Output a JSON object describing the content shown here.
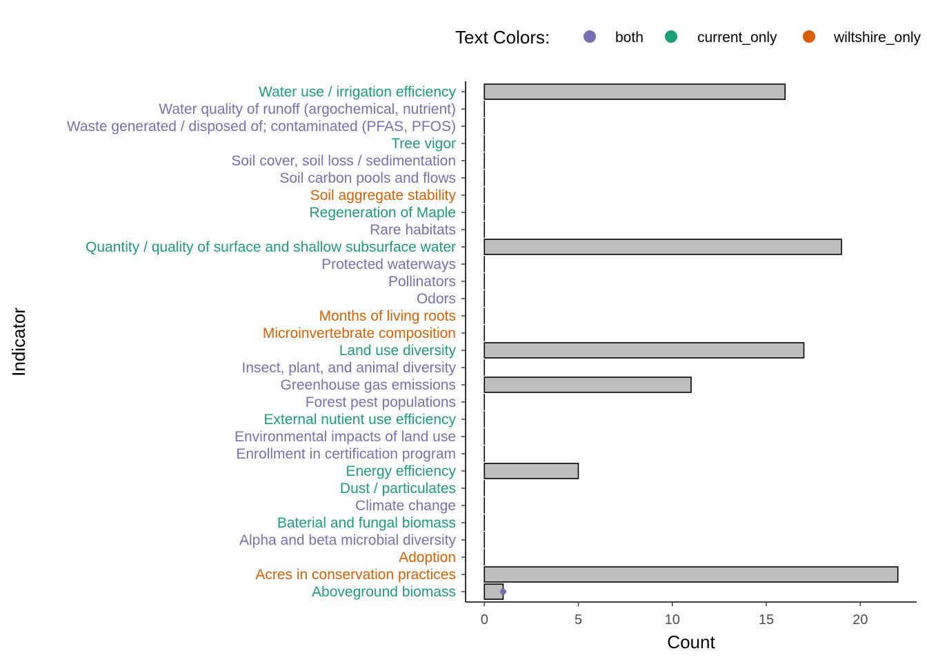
{
  "chart_data": {
    "type": "bar",
    "orientation": "horizontal",
    "xlabel": "Count",
    "ylabel": "Indicator",
    "xlim": [
      -1,
      23
    ],
    "x_ticks": [
      0,
      5,
      10,
      15,
      20
    ],
    "grid": false,
    "legend": {
      "title": "Text Colors:",
      "placement": "top",
      "entries": [
        {
          "name": "both",
          "color": "#7570B3"
        },
        {
          "name": "current_only",
          "color": "#1B9E77"
        },
        {
          "name": "wiltshire_only",
          "color": "#D95F02"
        }
      ]
    },
    "bar_fill": "#BEBEBE",
    "bar_stroke": "#000000",
    "categories": [
      {
        "label": "Water use / irrigation efficiency",
        "value": 16,
        "group": "current_only"
      },
      {
        "label": "Water quality of runoff (argochemical, nutrient)",
        "value": 0,
        "group": "both"
      },
      {
        "label": "Waste generated / disposed of; contaminated (PFAS, PFOS)",
        "value": 0,
        "group": "both"
      },
      {
        "label": "Tree vigor",
        "value": 0,
        "group": "current_only"
      },
      {
        "label": "Soil cover, soil loss / sedimentation",
        "value": 0,
        "group": "both"
      },
      {
        "label": "Soil carbon pools and flows",
        "value": 0,
        "group": "both"
      },
      {
        "label": "Soil aggregate stability",
        "value": 0,
        "group": "wiltshire_only"
      },
      {
        "label": "Regeneration of Maple",
        "value": 0,
        "group": "current_only"
      },
      {
        "label": "Rare habitats",
        "value": 0,
        "group": "both"
      },
      {
        "label": "Quantity / quality of surface and shallow subsurface water",
        "value": 19,
        "group": "current_only"
      },
      {
        "label": "Protected waterways",
        "value": 0,
        "group": "both"
      },
      {
        "label": "Pollinators",
        "value": 0,
        "group": "both"
      },
      {
        "label": "Odors",
        "value": 0,
        "group": "both"
      },
      {
        "label": "Months of living roots",
        "value": 0,
        "group": "wiltshire_only"
      },
      {
        "label": "Microinvertebrate composition",
        "value": 0,
        "group": "wiltshire_only"
      },
      {
        "label": "Land use diversity",
        "value": 17,
        "group": "current_only"
      },
      {
        "label": "Insect, plant, and animal diversity",
        "value": 0,
        "group": "both"
      },
      {
        "label": "Greenhouse gas emissions",
        "value": 11,
        "group": "both"
      },
      {
        "label": "Forest pest populations",
        "value": 0,
        "group": "both"
      },
      {
        "label": "External nutient use efficiency",
        "value": 0,
        "group": "current_only"
      },
      {
        "label": "Environmental impacts of land use",
        "value": 0,
        "group": "both"
      },
      {
        "label": "Enrollment in certification program",
        "value": 0,
        "group": "both"
      },
      {
        "label": "Energy efficiency",
        "value": 5,
        "group": "current_only"
      },
      {
        "label": "Dust / particulates",
        "value": 0,
        "group": "current_only"
      },
      {
        "label": "Climate change",
        "value": 0,
        "group": "both"
      },
      {
        "label": "Baterial and fungal biomass",
        "value": 0,
        "group": "current_only"
      },
      {
        "label": "Alpha and beta microbial diversity",
        "value": 0,
        "group": "both"
      },
      {
        "label": "Adoption",
        "value": 0,
        "group": "wiltshire_only"
      },
      {
        "label": "Acres in conservation practices",
        "value": 22,
        "group": "wiltshire_only"
      },
      {
        "label": "Aboveground biomass",
        "value": 1,
        "group": "current_only"
      }
    ],
    "points": [
      {
        "category": "Aboveground biomass",
        "value": 1,
        "group": "both"
      }
    ]
  }
}
